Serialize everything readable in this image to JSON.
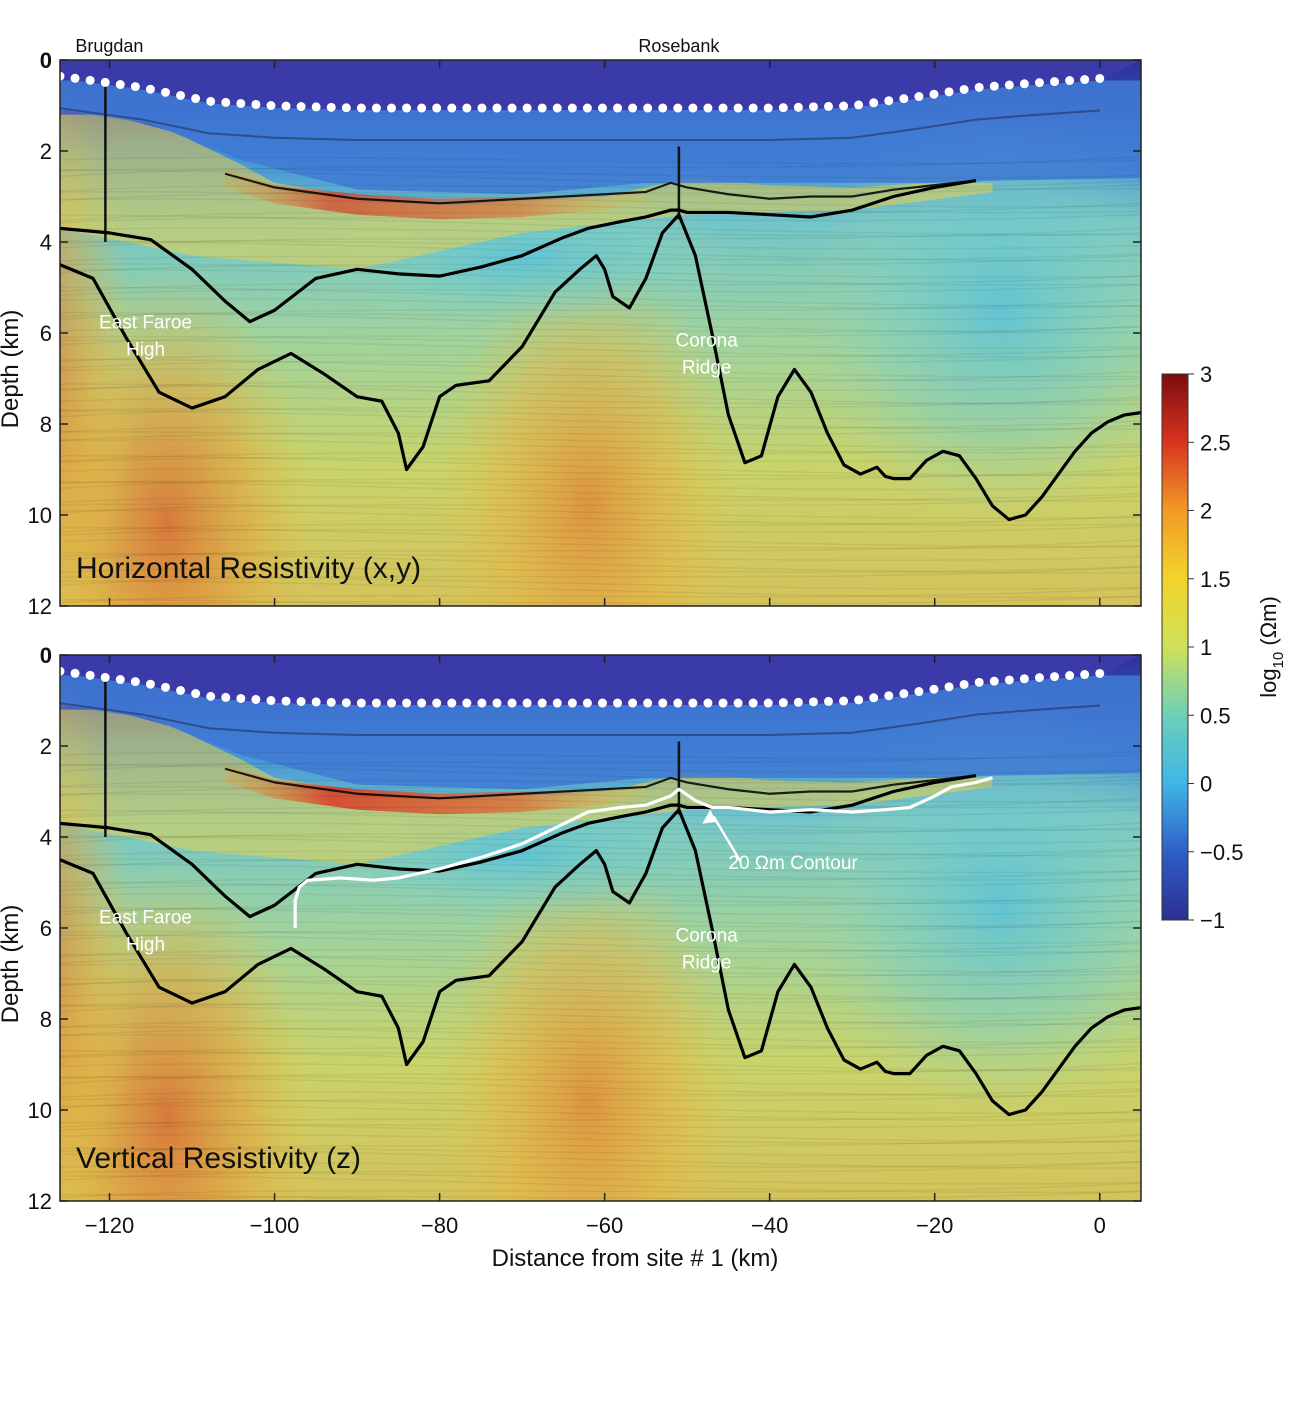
{
  "chart_data": [
    {
      "type": "heatmap",
      "panel": "top",
      "title": "Horizontal Resistivity (x,y)",
      "xlabel": "",
      "ylabel": "Depth (km)",
      "xlim": [
        -126,
        5
      ],
      "ylim": [
        12,
        0
      ],
      "xticks": [
        -120,
        -100,
        -80,
        -60,
        -40,
        -20,
        0
      ],
      "yticks": [
        0,
        2,
        4,
        6,
        8,
        10,
        12
      ],
      "site_labels": [
        {
          "x": -120.5,
          "text": "Brugdan"
        },
        {
          "x": -51,
          "text": "Rosebank"
        }
      ],
      "annotations": [
        {
          "lines": [
            "East Faroe",
            "High"
          ],
          "x": -120,
          "y": 5.9
        },
        {
          "lines": [
            "Corona",
            "Ridge"
          ],
          "x": -52,
          "y": 6.3
        }
      ],
      "boundary_lines": [
        {
          "name": "upper",
          "x": [
            -126,
            -120,
            -115,
            -110,
            -106,
            -103,
            -100,
            -95,
            -90,
            -85,
            -80,
            -75,
            -70,
            -65,
            -62,
            -58,
            -55,
            -52,
            -51,
            -50,
            -45,
            -40,
            -35,
            -30,
            -25,
            -20,
            -15
          ],
          "y": [
            3.7,
            3.8,
            3.95,
            4.6,
            5.3,
            5.75,
            5.5,
            4.8,
            4.6,
            4.7,
            4.75,
            4.55,
            4.3,
            3.9,
            3.7,
            3.55,
            3.45,
            3.3,
            3.3,
            3.35,
            3.35,
            3.4,
            3.45,
            3.3,
            3.0,
            2.8,
            2.65
          ]
        },
        {
          "name": "lower",
          "x": [
            -126,
            -122,
            -118,
            -114,
            -110,
            -106,
            -102,
            -98,
            -94,
            -90,
            -87,
            -85,
            -84,
            -82,
            -80,
            -78,
            -74,
            -70,
            -66,
            -63,
            -61,
            -60,
            -59,
            -57,
            -55,
            -53,
            -51,
            -49,
            -47,
            -45,
            -43,
            -41,
            -39,
            -37,
            -35,
            -33,
            -31,
            -29,
            -27,
            -26,
            -25,
            -23,
            -21,
            -19,
            -17,
            -15,
            -13,
            -11,
            -9,
            -7,
            -5,
            -3,
            -1,
            1,
            3,
            5
          ],
          "y": [
            4.5,
            4.8,
            6.1,
            7.3,
            7.65,
            7.4,
            6.8,
            6.45,
            6.9,
            7.4,
            7.5,
            8.2,
            9.0,
            8.5,
            7.4,
            7.15,
            7.05,
            6.3,
            5.1,
            4.6,
            4.3,
            4.6,
            5.2,
            5.45,
            4.8,
            3.8,
            3.4,
            4.3,
            6.0,
            7.8,
            8.85,
            8.7,
            7.4,
            6.8,
            7.3,
            8.2,
            8.9,
            9.1,
            8.95,
            9.15,
            9.2,
            9.2,
            8.8,
            8.6,
            8.7,
            9.2,
            9.8,
            10.1,
            10.0,
            9.6,
            9.1,
            8.6,
            8.2,
            7.95,
            7.8,
            7.75
          ]
        }
      ],
      "receiver_sites": {
        "x_start": -126,
        "x_end": 0,
        "count": 70
      },
      "seafloor": {
        "x": [
          -126,
          -116,
          -108,
          -100,
          -90,
          -80,
          -70,
          -60,
          -50,
          -40,
          -30,
          -22,
          -15,
          -8,
          0
        ],
        "y": [
          0.4,
          0.65,
          0.95,
          1.05,
          1.1,
          1.1,
          1.1,
          1.1,
          1.1,
          1.1,
          1.05,
          0.85,
          0.65,
          0.55,
          0.45
        ]
      }
    },
    {
      "type": "heatmap",
      "panel": "bottom",
      "title": "Vertical Resistivity (z)",
      "xlabel": "Distance from site # 1 (km)",
      "ylabel": "Depth (km)",
      "xlim": [
        -126,
        5
      ],
      "ylim": [
        12,
        0
      ],
      "xticks": [
        -120,
        -100,
        -80,
        -60,
        -40,
        -20,
        0
      ],
      "yticks": [
        0,
        2,
        4,
        6,
        8,
        10,
        12
      ],
      "annotations": [
        {
          "lines": [
            "East Faroe",
            "High"
          ],
          "x": -120,
          "y": 5.9
        },
        {
          "lines": [
            "Corona",
            "Ridge"
          ],
          "x": -52,
          "y": 6.3
        },
        {
          "lines": [
            "20 Ωm Contour"
          ],
          "x": -45,
          "y": 4.7
        }
      ],
      "contour_20_ohm_m": {
        "x": [
          -97.5,
          -97.5,
          -97,
          -96,
          -92,
          -88,
          -85,
          -80,
          -75,
          -70,
          -66,
          -62,
          -58,
          -55,
          -52,
          -51,
          -49,
          -47,
          -45,
          -40,
          -35,
          -30,
          -26,
          -23,
          -20,
          -18,
          -15,
          -13
        ],
        "y": [
          6.0,
          5.4,
          5.1,
          4.95,
          4.9,
          4.95,
          4.9,
          4.7,
          4.45,
          4.15,
          3.8,
          3.45,
          3.35,
          3.3,
          3.1,
          2.95,
          3.2,
          3.35,
          3.35,
          3.45,
          3.4,
          3.45,
          3.4,
          3.35,
          3.1,
          2.9,
          2.8,
          2.7
        ]
      },
      "contour_value": "20 Ωm"
    }
  ],
  "colorbar": {
    "label": "log10 (Ωm)",
    "label_main": "log",
    "label_sub": "10",
    "label_unit": " (Ωm)",
    "range": [
      -1,
      3
    ],
    "ticks": [
      "3",
      "2.5",
      "2",
      "1.5",
      "1",
      "0.5",
      "0",
      "−0.5",
      "−1"
    ],
    "tick_values": [
      3,
      2.5,
      2,
      1.5,
      1,
      0.5,
      0,
      -0.5,
      -1
    ],
    "colors": [
      "#2b2f8f",
      "#2f5fc7",
      "#3fb6e6",
      "#6cd0b8",
      "#cfe05a",
      "#f2d42a",
      "#f19a26",
      "#d8341f",
      "#7c0d0d"
    ]
  },
  "top_x_tick_labels": [
    "−120",
    "−100",
    "−80",
    "−60",
    "−40",
    "−20",
    "0"
  ]
}
